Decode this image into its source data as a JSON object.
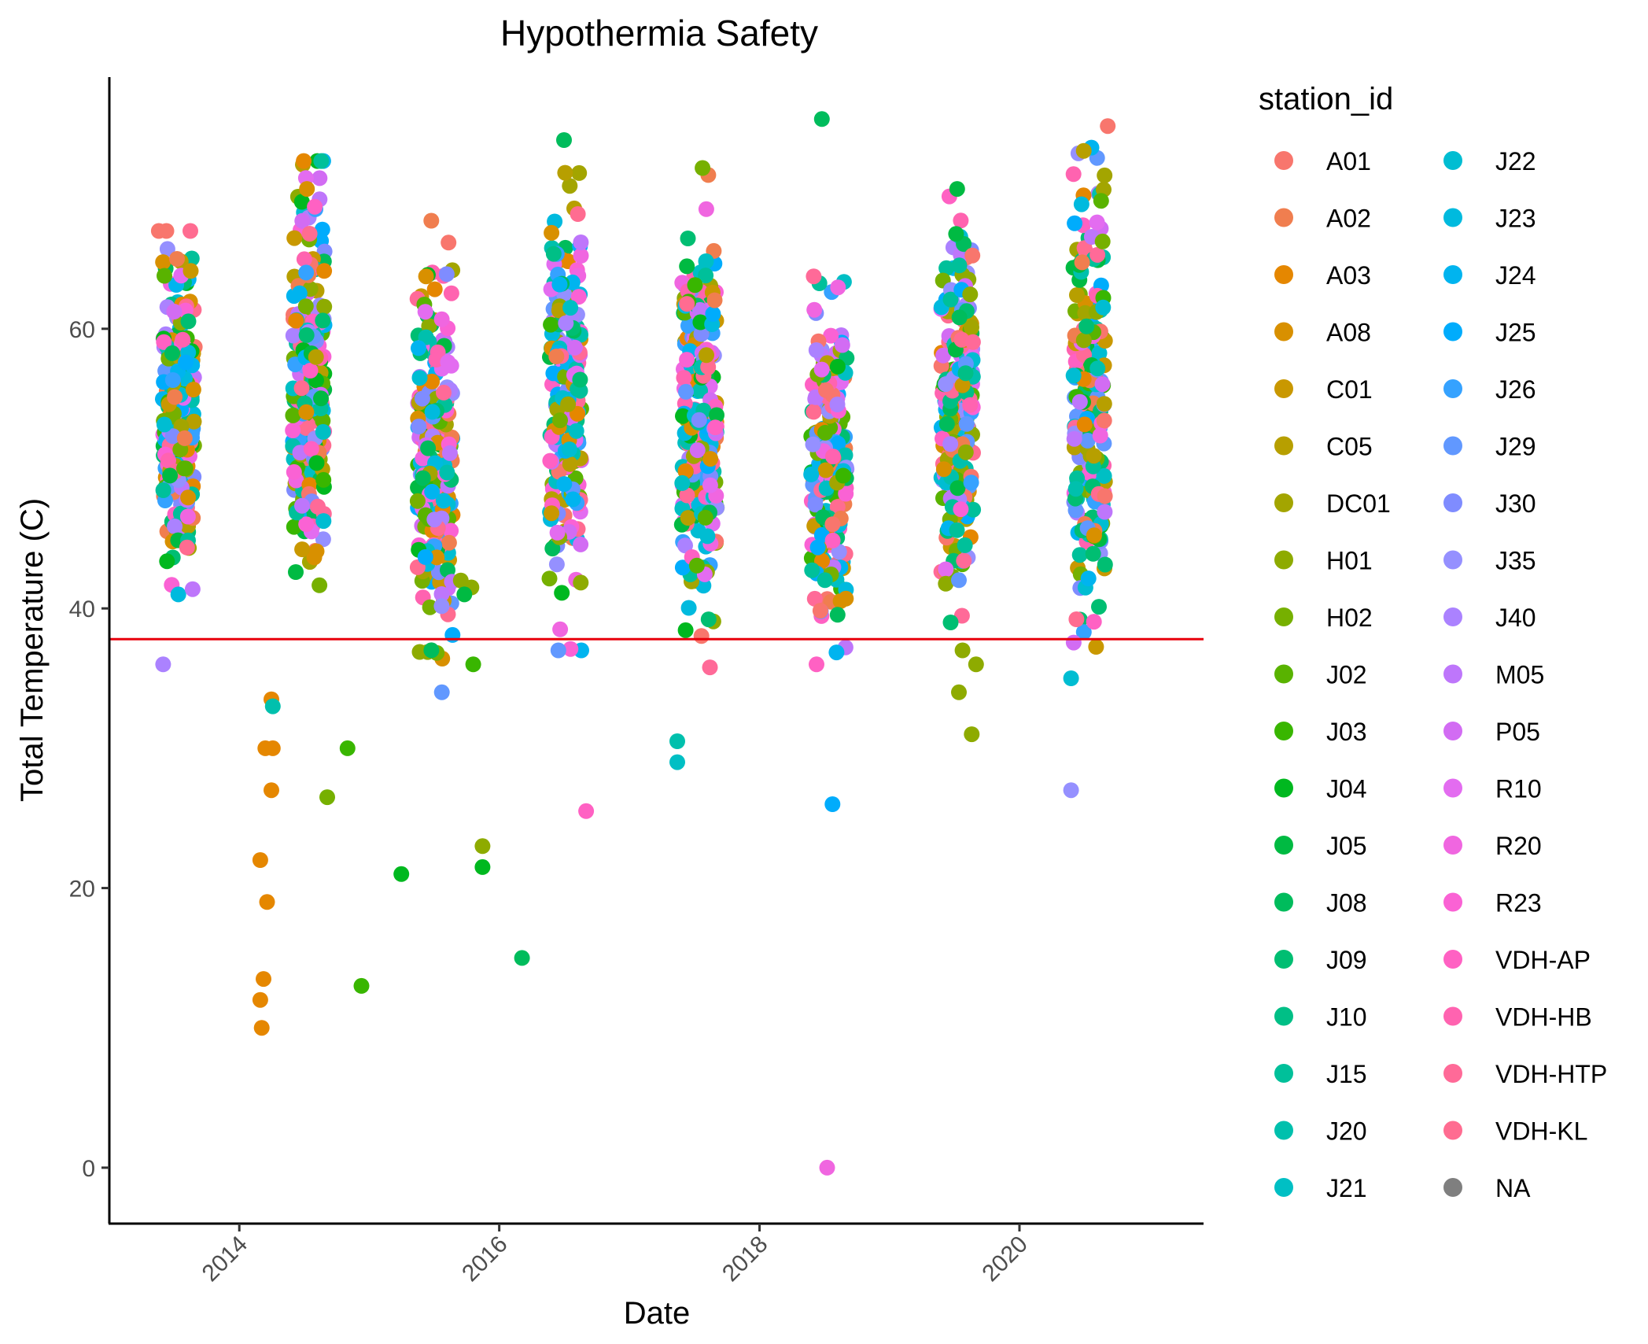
{
  "chart_data": {
    "type": "scatter",
    "title": "Hypothermia Safety",
    "xlabel": "Date",
    "ylabel": "Total Temperature (C)",
    "x_axis": {
      "type": "date",
      "range": [
        "2013-01-01",
        "2021-06-01"
      ],
      "ticks": [
        "2014",
        "2016",
        "2018",
        "2020"
      ]
    },
    "y_axis": {
      "range": [
        -4,
        78
      ],
      "ticks": [
        "0",
        "20",
        "40",
        "60"
      ]
    },
    "reference_line": {
      "y": 37.8,
      "color": "#e8000b"
    },
    "legend": {
      "title": "station_id",
      "placement": "right",
      "entries": [
        {
          "label": "A01",
          "color": "#F8766D"
        },
        {
          "label": "A02",
          "color": "#F07E4F"
        },
        {
          "label": "A03",
          "color": "#E58700"
        },
        {
          "label": "A08",
          "color": "#D89000"
        },
        {
          "label": "C01",
          "color": "#C99800"
        },
        {
          "label": "C05",
          "color": "#B79F00"
        },
        {
          "label": "DC01",
          "color": "#A3A500"
        },
        {
          "label": "H01",
          "color": "#8EAB00"
        },
        {
          "label": "H02",
          "color": "#76B000"
        },
        {
          "label": "J02",
          "color": "#59B300"
        },
        {
          "label": "J03",
          "color": "#39B600"
        },
        {
          "label": "J04",
          "color": "#00B81F"
        },
        {
          "label": "J05",
          "color": "#00BA42"
        },
        {
          "label": "J08",
          "color": "#00BC5C"
        },
        {
          "label": "J09",
          "color": "#00BE72"
        },
        {
          "label": "J10",
          "color": "#00BF86"
        },
        {
          "label": "J15",
          "color": "#00C09A"
        },
        {
          "label": "J20",
          "color": "#00C0AD"
        },
        {
          "label": "J21",
          "color": "#00BFC4"
        },
        {
          "label": "J22",
          "color": "#00BDD2"
        },
        {
          "label": "J23",
          "color": "#00BADE"
        },
        {
          "label": "J24",
          "color": "#00B4EF"
        },
        {
          "label": "J25",
          "color": "#00ACFC"
        },
        {
          "label": "J26",
          "color": "#35A2FF"
        },
        {
          "label": "J29",
          "color": "#6198FF"
        },
        {
          "label": "J30",
          "color": "#7F8CFF"
        },
        {
          "label": "J35",
          "color": "#9590FF"
        },
        {
          "label": "J40",
          "color": "#AB82FF"
        },
        {
          "label": "M05",
          "color": "#BE76FB"
        },
        {
          "label": "P05",
          "color": "#D26CF3"
        },
        {
          "label": "R10",
          "color": "#E36CF0"
        },
        {
          "label": "R20",
          "color": "#F066E0"
        },
        {
          "label": "R23",
          "color": "#FA62D4"
        },
        {
          "label": "VDH-AP",
          "color": "#FF61C3"
        },
        {
          "label": "VDH-HB",
          "color": "#FF63B0"
        },
        {
          "label": "VDH-HTP",
          "color": "#FF6A98"
        },
        {
          "label": "VDH-KL",
          "color": "#FF6C91"
        },
        {
          "label": "NA",
          "color": "#7F7F7F"
        }
      ]
    },
    "seasons": [
      {
        "center": "2013-07-15",
        "spread_days": 45,
        "low": 41,
        "high": 67
      },
      {
        "center": "2014-07-15",
        "spread_days": 45,
        "low": 40,
        "high": 72
      },
      {
        "center": "2015-07-05",
        "spread_days": 50,
        "low": 34,
        "high": 68
      },
      {
        "center": "2016-07-05",
        "spread_days": 45,
        "low": 37,
        "high": 73
      },
      {
        "center": "2017-07-15",
        "spread_days": 50,
        "low": 35,
        "high": 71
      },
      {
        "center": "2018-07-15",
        "spread_days": 50,
        "low": 36,
        "high": 64
      },
      {
        "center": "2019-07-10",
        "spread_days": 45,
        "low": 39,
        "high": 70
      },
      {
        "center": "2020-07-15",
        "spread_days": 45,
        "low": 35,
        "high": 74
      }
    ],
    "outliers": [
      {
        "x": "2013-06-01",
        "y": 36,
        "s": "J40"
      },
      {
        "x": "2013-05-20",
        "y": 67,
        "s": "A01"
      },
      {
        "x": "2013-07-10",
        "y": 65,
        "s": "A02"
      },
      {
        "x": "2014-03-01",
        "y": 22,
        "s": "A03"
      },
      {
        "x": "2014-03-01",
        "y": 12,
        "s": "A03"
      },
      {
        "x": "2014-03-05",
        "y": 10,
        "s": "A03"
      },
      {
        "x": "2014-03-10",
        "y": 13.5,
        "s": "A03"
      },
      {
        "x": "2014-03-20",
        "y": 19,
        "s": "A03"
      },
      {
        "x": "2014-03-15",
        "y": 30,
        "s": "A03"
      },
      {
        "x": "2014-04-05",
        "y": 30,
        "s": "A03"
      },
      {
        "x": "2014-04-01",
        "y": 27,
        "s": "A03"
      },
      {
        "x": "2014-04-01",
        "y": 33.5,
        "s": "A03"
      },
      {
        "x": "2014-04-05",
        "y": 33,
        "s": "J20"
      },
      {
        "x": "2014-07-01",
        "y": 72,
        "s": "A03"
      },
      {
        "x": "2014-07-10",
        "y": 70,
        "s": "A08"
      },
      {
        "x": "2014-09-05",
        "y": 26.5,
        "s": "H02"
      },
      {
        "x": "2014-11-01",
        "y": 30,
        "s": "J03"
      },
      {
        "x": "2014-12-10",
        "y": 13,
        "s": "J03"
      },
      {
        "x": "2015-04-01",
        "y": 21,
        "s": "J04"
      },
      {
        "x": "2015-09-15",
        "y": 42,
        "s": "H01"
      },
      {
        "x": "2015-10-15",
        "y": 41.5,
        "s": "H01"
      },
      {
        "x": "2015-09-25",
        "y": 41,
        "s": "J05"
      },
      {
        "x": "2015-10-20",
        "y": 36,
        "s": "J03"
      },
      {
        "x": "2015-11-15",
        "y": 23,
        "s": "H01"
      },
      {
        "x": "2015-11-15",
        "y": 21.5,
        "s": "J04"
      },
      {
        "x": "2016-03-05",
        "y": 15,
        "s": "J08"
      },
      {
        "x": "2016-06-15",
        "y": 37,
        "s": "J29"
      },
      {
        "x": "2016-06-20",
        "y": 38.5,
        "s": "R20"
      },
      {
        "x": "2016-09-01",
        "y": 25.5,
        "s": "VDH-AP"
      },
      {
        "x": "2016-07-01",
        "y": 73.5,
        "s": "J08"
      },
      {
        "x": "2017-05-15",
        "y": 30.5,
        "s": "J20"
      },
      {
        "x": "2017-05-15",
        "y": 29,
        "s": "J21"
      },
      {
        "x": "2017-08-10",
        "y": 71,
        "s": "A02"
      },
      {
        "x": "2017-07-25",
        "y": 71.5,
        "s": "H02"
      },
      {
        "x": "2018-06-25",
        "y": 75,
        "s": "J08"
      },
      {
        "x": "2018-07-10",
        "y": 0,
        "s": "R20"
      },
      {
        "x": "2018-07-25",
        "y": 26,
        "s": "J25"
      },
      {
        "x": "2018-06-10",
        "y": 36,
        "s": "VDH-AP"
      },
      {
        "x": "2019-07-10",
        "y": 70,
        "s": "J05"
      },
      {
        "x": "2019-07-15",
        "y": 34,
        "s": "H01"
      },
      {
        "x": "2019-08-20",
        "y": 31,
        "s": "H01"
      },
      {
        "x": "2019-07-25",
        "y": 37,
        "s": "H01"
      },
      {
        "x": "2019-09-01",
        "y": 36,
        "s": "H01"
      },
      {
        "x": "2020-05-25",
        "y": 27,
        "s": "J35"
      },
      {
        "x": "2020-05-25",
        "y": 35,
        "s": "J22"
      },
      {
        "x": "2020-09-05",
        "y": 74.5,
        "s": "A01"
      }
    ]
  }
}
